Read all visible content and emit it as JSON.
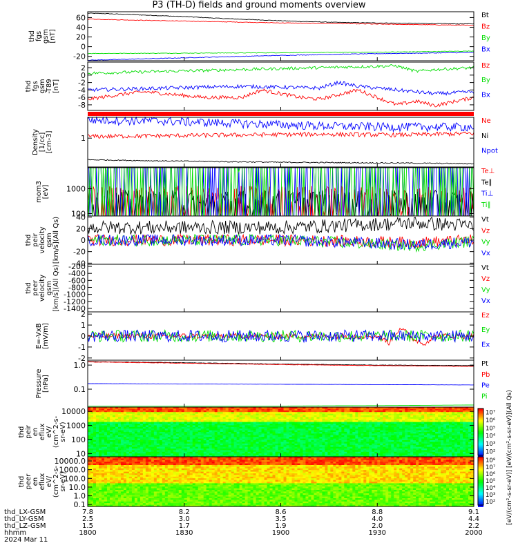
{
  "title": "P3 (TH-D) fields and ground moments overview",
  "colors": {
    "black": "#000000",
    "red": "#ff0000",
    "green": "#00dd00",
    "blue": "#0000ff"
  },
  "chart_data": [
    {
      "type": "line",
      "id": "fgs",
      "ylabel": [
        "thd",
        "fgs",
        "gsm",
        "[nT]"
      ],
      "yticks": [
        60,
        40,
        20,
        0,
        -20
      ],
      "ylim": [
        -29,
        72
      ],
      "scale": "linear",
      "series": [
        {
          "name": "Bt",
          "color": "#000000",
          "x": [
            0,
            0.05,
            0.15,
            0.25,
            0.35,
            0.45,
            0.55,
            0.65,
            0.75,
            0.85,
            0.95,
            1
          ],
          "values": [
            69,
            68,
            65,
            62,
            58,
            55,
            52,
            50,
            49,
            48,
            47,
            47
          ]
        },
        {
          "name": "Bz",
          "color": "#ff0000",
          "x": [
            0,
            0.1,
            0.3,
            0.5,
            0.7,
            0.9,
            1
          ],
          "values": [
            57,
            55,
            52,
            49,
            47,
            45,
            44
          ]
        },
        {
          "name": "By",
          "color": "#00dd00",
          "x": [
            0,
            0.2,
            0.5,
            0.8,
            0.9,
            1
          ],
          "values": [
            -14,
            -13.5,
            -12.5,
            -11,
            -10,
            -9
          ]
        },
        {
          "name": "Bx",
          "color": "#0000ff",
          "x": [
            0,
            0.1,
            0.3,
            0.5,
            0.7,
            0.9,
            1
          ],
          "values": [
            -28,
            -26,
            -22,
            -18,
            -15,
            -13,
            -12
          ]
        }
      ]
    },
    {
      "type": "line",
      "id": "fgs-dgb",
      "ylabel": [
        "thd",
        "fgs",
        "gsm",
        "-T89",
        "[nT]"
      ],
      "yticks": [
        2,
        0,
        -2,
        -4,
        -6,
        -8
      ],
      "ylim": [
        -9.5,
        3.5
      ],
      "scale": "linear",
      "series": [
        {
          "name": "Bz",
          "color": "#ff0000",
          "x": [
            0,
            0.1,
            0.15,
            0.3,
            0.4,
            0.45,
            0.55,
            0.6,
            0.7,
            0.8,
            0.85,
            0.9,
            1
          ],
          "values": [
            -6.5,
            -5,
            -4.5,
            -6,
            -6,
            -4,
            -6,
            -6.5,
            -4,
            -8,
            -7,
            -8.2,
            -6
          ]
        },
        {
          "name": "By",
          "color": "#00dd00",
          "x": [
            0,
            0.2,
            0.4,
            0.6,
            0.8,
            0.85,
            0.9,
            1
          ],
          "values": [
            0.5,
            1,
            1.5,
            2,
            2.5,
            1,
            1.5,
            2
          ]
        },
        {
          "name": "Bx",
          "color": "#0000ff",
          "x": [
            0,
            0.2,
            0.4,
            0.6,
            0.65,
            0.7,
            0.8,
            0.9,
            1
          ],
          "values": [
            -4,
            -3.5,
            -3,
            -3.5,
            -2,
            -3,
            -4,
            -5,
            -4.5
          ]
        }
      ]
    },
    {
      "type": "line",
      "id": "density",
      "ylabel": [
        "Density",
        "[1/cc]",
        "[cm-3]"
      ],
      "yticks": [
        1
      ],
      "ytick_labels": [
        "1"
      ],
      "ylim": [
        0.2,
        3.2
      ],
      "scale": "log",
      "series": [
        {
          "name": "Ne",
          "color": "#ff0000",
          "x": [
            0,
            0.2,
            0.4,
            0.6,
            0.8,
            1
          ],
          "values": [
            1.1,
            1.15,
            1.2,
            1.25,
            1.2,
            1.3
          ]
        },
        {
          "name": "Ni",
          "color": "#000000",
          "x": [
            0,
            0.2,
            0.5,
            0.8,
            1
          ],
          "values": [
            0.3,
            0.28,
            0.26,
            0.25,
            0.24
          ]
        },
        {
          "name": "Npot",
          "color": "#0000ff",
          "x": [
            0,
            0.2,
            0.4,
            0.6,
            0.8,
            1
          ],
          "values": [
            2.8,
            2.6,
            2.3,
            2.0,
            1.9,
            1.9
          ]
        }
      ]
    },
    {
      "type": "line",
      "id": "temperature",
      "ylabel": [
        "mom3",
        "[eV]"
      ],
      "yticks": [
        1000,
        100
      ],
      "ytick_labels": [
        "1000",
        "100"
      ],
      "ylim": [
        80,
        7000
      ],
      "scale": "log",
      "series": [
        {
          "name": "Te⊥",
          "color": "#ff0000",
          "x": [
            0,
            1
          ],
          "values": [
            120,
            120
          ]
        },
        {
          "name": "Te∥",
          "color": "#000000",
          "x": [
            0,
            1
          ],
          "values": [
            95,
            95
          ]
        },
        {
          "name": "Ti⊥",
          "color": "#0000ff",
          "x": [
            0,
            1
          ],
          "values": [
            4200,
            4000
          ]
        },
        {
          "name": "Ti∥",
          "color": "#00dd00",
          "x": [
            0,
            1
          ],
          "values": [
            3000,
            2800
          ]
        }
      ]
    },
    {
      "type": "line",
      "id": "velocity",
      "ylabel": [
        "thd",
        "peir",
        "velocity",
        "gsm",
        "[km/s](All Qs)"
      ],
      "yticks": [
        40,
        20,
        0,
        -20,
        -40
      ],
      "ylim": [
        -42,
        42
      ],
      "scale": "linear",
      "series": [
        {
          "name": "Vt",
          "color": "#000000",
          "x": [
            0,
            0.5,
            0.85,
            1
          ],
          "values": [
            22,
            22,
            30,
            25
          ]
        },
        {
          "name": "Vz",
          "color": "#ff0000",
          "x": [
            0,
            0.5,
            0.85,
            1
          ],
          "values": [
            0,
            0,
            -4,
            0
          ]
        },
        {
          "name": "Vy",
          "color": "#00dd00",
          "x": [
            0,
            0.5,
            0.85,
            1
          ],
          "values": [
            0,
            0,
            -10,
            -2
          ]
        },
        {
          "name": "Vx",
          "color": "#0000ff",
          "x": [
            0,
            0.5,
            0.85,
            1
          ],
          "values": [
            0,
            0,
            -8,
            -3
          ]
        }
      ]
    },
    {
      "type": "line",
      "id": "velocity-peer",
      "ylabel": [
        "thd",
        "peer",
        "velocity",
        "gsm",
        "[km/s](All Qs)"
      ],
      "yticks": [
        -200,
        -400,
        -600,
        -800,
        -1000,
        -1200,
        -1400
      ],
      "ylim": [
        -1500,
        -140
      ],
      "scale": "linear",
      "series": [
        {
          "name": "Vt",
          "color": "#000000",
          "x": [],
          "values": []
        },
        {
          "name": "Vz",
          "color": "#ff0000",
          "x": [],
          "values": []
        },
        {
          "name": "Vy",
          "color": "#00dd00",
          "x": [],
          "values": []
        },
        {
          "name": "Vx",
          "color": "#0000ff",
          "x": [],
          "values": []
        }
      ]
    },
    {
      "type": "line",
      "id": "efield",
      "ylabel": [
        "E=-VxB",
        "[mV/m]"
      ],
      "yticks": [
        2,
        1,
        0,
        -1,
        -2
      ],
      "ylim": [
        -2.2,
        2.2
      ],
      "scale": "linear",
      "series": [
        {
          "name": "Ez",
          "color": "#ff0000",
          "x": [
            0,
            0.75,
            0.78,
            0.81,
            0.84,
            0.87,
            0.9,
            1
          ],
          "values": [
            0,
            0,
            -0.6,
            0.8,
            -0.2,
            -0.7,
            0,
            0
          ]
        },
        {
          "name": "Ey",
          "color": "#00dd00",
          "x": [
            0,
            1
          ],
          "values": [
            0,
            0
          ]
        },
        {
          "name": "Ex",
          "color": "#0000ff",
          "x": [
            0,
            1
          ],
          "values": [
            0,
            0
          ]
        }
      ]
    },
    {
      "type": "line",
      "id": "pressure",
      "ylabel": [
        "Pressure",
        "[nPa]"
      ],
      "yticks": [
        1.0,
        0.1
      ],
      "ytick_labels": [
        "1.0",
        "0.1"
      ],
      "ylim": [
        0.018,
        1.6
      ],
      "scale": "log",
      "series": [
        {
          "name": "Pt",
          "color": "#000000",
          "x": [
            0,
            0.25,
            0.5,
            0.75,
            1
          ],
          "values": [
            1.4,
            1.25,
            1.1,
            1.0,
            0.95
          ]
        },
        {
          "name": "Pb",
          "color": "#ff0000",
          "x": [
            0,
            0.25,
            0.5,
            0.75,
            1
          ],
          "values": [
            1.35,
            1.2,
            1.05,
            0.95,
            0.88
          ]
        },
        {
          "name": "Pe",
          "color": "#0000ff",
          "x": [
            0,
            0.5,
            1
          ],
          "values": [
            0.17,
            0.16,
            0.15
          ]
        },
        {
          "name": "Pi",
          "color": "#00dd00",
          "x": [
            0,
            0.5,
            0.8,
            1
          ],
          "values": [
            0.02,
            0.02,
            0.021,
            0.022
          ]
        }
      ]
    },
    {
      "type": "heatmap",
      "id": "peir-spectrogram",
      "ylabel": [
        "thd",
        "peir",
        "en",
        "eflux",
        "eV/",
        "(cm^2-s-",
        "sr-eV)"
      ],
      "yticks": [
        10000,
        1000,
        100,
        10
      ],
      "ytick_labels": [
        "10000",
        "1000",
        "100",
        "10"
      ],
      "ylim": [
        6,
        20000
      ],
      "scale": "log"
    },
    {
      "type": "heatmap",
      "id": "peer-spectrogram",
      "ylabel": [
        "thd",
        "peer",
        "en",
        "eflux",
        "eV/",
        "(cm^2-s-",
        "sr-eV)"
      ],
      "yticks": [
        10000,
        1000,
        100,
        10,
        1,
        0.1
      ],
      "ytick_labels": [
        "10000.0",
        "1000.0",
        "100.0",
        "10.0",
        "1.0",
        "0.1"
      ],
      "ylim": [
        0.06,
        30000
      ],
      "scale": "log"
    }
  ],
  "colorbar": {
    "peir_ticks": [
      "10⁷",
      "10⁶",
      "10⁵",
      "10⁴",
      "10³",
      "10²"
    ],
    "peer_ticks": [
      "10⁸",
      "10⁷",
      "10⁶",
      "10⁵",
      "10⁴",
      "10³",
      "10²"
    ],
    "label": "[eV/(cm²-s-sr-eV)] [eV/(cm²-s-sr-eV)](All Qs)"
  },
  "x_axis": {
    "tick_positions": [
      0,
      0.25,
      0.5,
      0.75,
      1
    ],
    "rows": [
      {
        "label": "thd_LX-GSM",
        "values": [
          "7.8",
          "8.2",
          "8.6",
          "8.8",
          "9.1"
        ]
      },
      {
        "label": "thd_LY-GSM",
        "values": [
          "2.5",
          "3.0",
          "3.5",
          "4.0",
          "4.4"
        ]
      },
      {
        "label": "thd_LZ-GSM",
        "values": [
          "1.5",
          "1.7",
          "1.9",
          "2.0",
          "2.2"
        ]
      },
      {
        "label": "hhmm",
        "values": [
          "1800",
          "1830",
          "1900",
          "1930",
          "2000"
        ]
      }
    ],
    "date": "2024 Mar 11"
  }
}
